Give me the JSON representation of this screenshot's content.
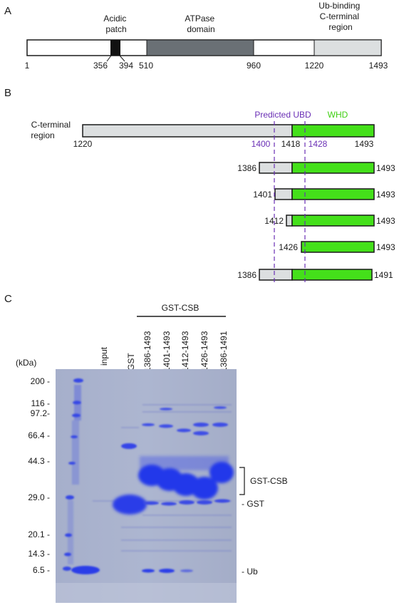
{
  "panel_a": {
    "letter": "A",
    "domains": {
      "acidic_patch": "Acidic\npatch",
      "atpase": "ATPase\ndomain",
      "ub_binding": "Ub-binding\nC-terminal\nregion"
    },
    "positions": [
      "1",
      "356",
      "394",
      "510",
      "960",
      "1220",
      "1493"
    ]
  },
  "panel_b": {
    "letter": "B",
    "region_label": "C-terminal\nregion",
    "predicted_ubd": "Predicted UBD",
    "whd": "WHD",
    "full_start": "1220",
    "mark_1400": "1400",
    "mark_1418": "1418",
    "mark_1428": "1428",
    "full_end": "1493",
    "constructs": [
      {
        "start": "1386",
        "end": "1493"
      },
      {
        "start": "1401",
        "end": "1493"
      },
      {
        "start": "1412",
        "end": "1493"
      },
      {
        "start": "1426",
        "end": "1493"
      },
      {
        "start": "1386",
        "end": "1491"
      }
    ]
  },
  "panel_c": {
    "letter": "C",
    "group_label": "GST-CSB",
    "kda_label": "(kDa)",
    "lanes": [
      "input",
      "GST",
      "1386-1493",
      "1401-1493",
      "1412-1493",
      "1426-1493",
      "1386-1491"
    ],
    "markers": [
      "200 -",
      "116 -",
      "97.2-",
      "66.4 -",
      "44.3 -",
      "29.0 -",
      "20.1 -",
      "14.3 -",
      "6.5 -"
    ],
    "right_labels": {
      "gst_csb": "GST-CSB",
      "gst": "- GST",
      "ub": "- Ub"
    }
  },
  "colors": {
    "light_gray": "#dcdfe0",
    "dark_gray": "#6a7075",
    "green": "#44e01a",
    "purple": "#6a2fb5",
    "gel_bg": "#a9b2cf",
    "band_blue": "#2b3de8"
  }
}
